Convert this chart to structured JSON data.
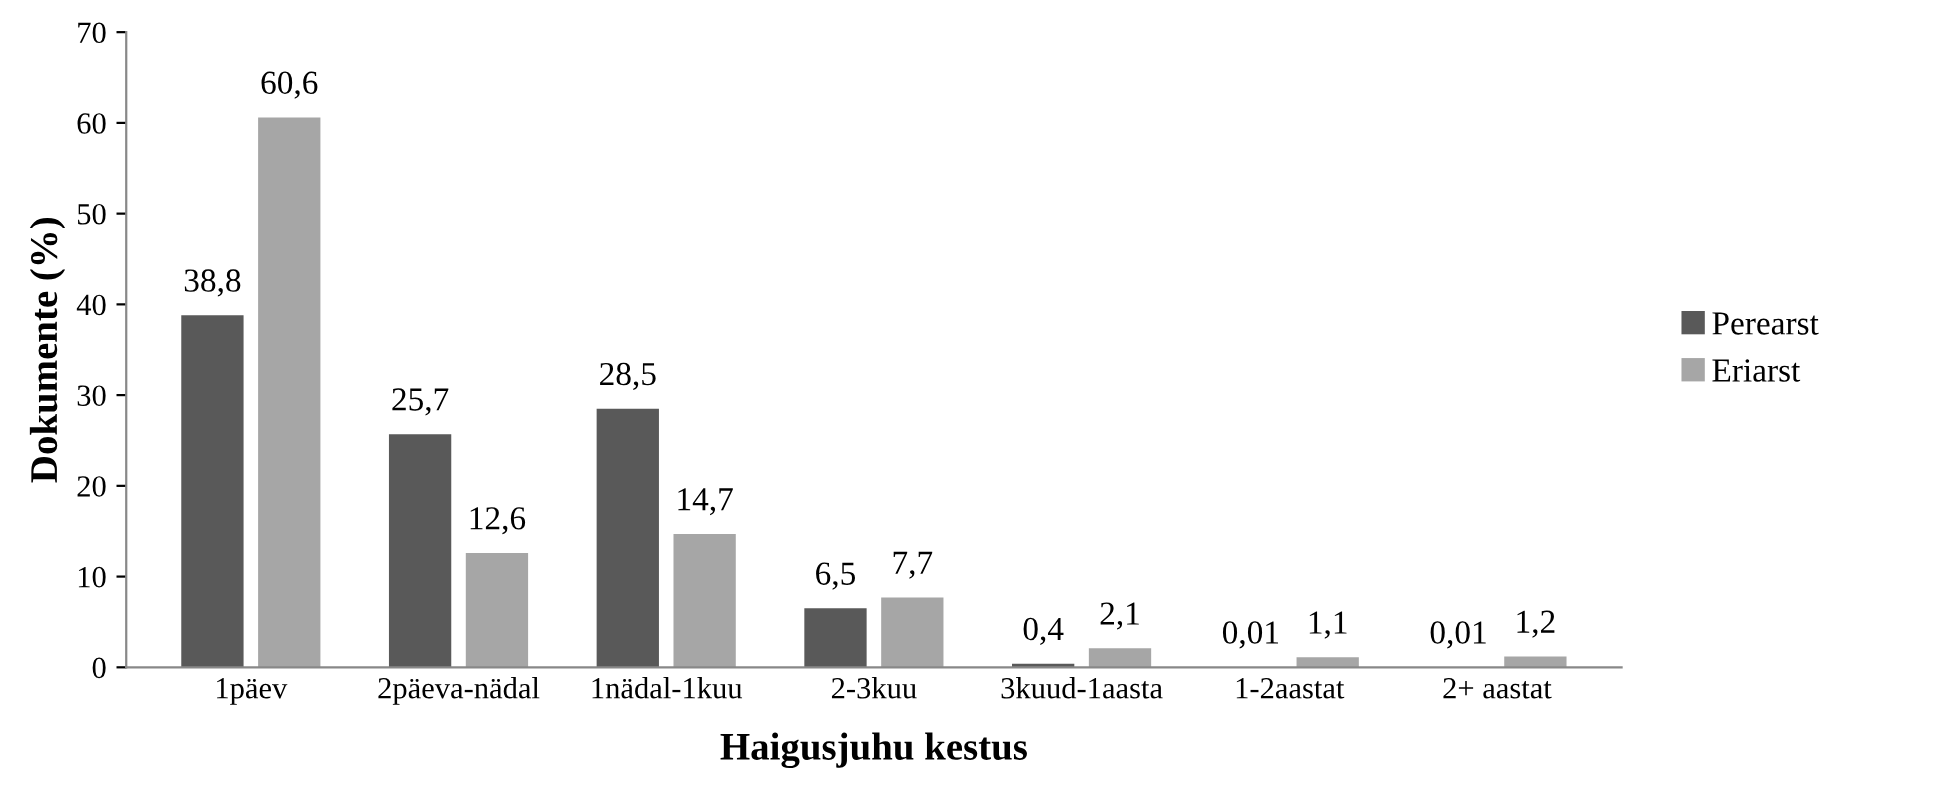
{
  "chart_data": {
    "type": "bar",
    "xlabel": "Haigusjuhu kestus",
    "ylabel": "Dokumente (%)",
    "categories": [
      "1päev",
      "2päeva-nädal",
      "1nädal-1kuu",
      "2-3kuu",
      "3kuud-1aasta",
      "1-2aastat",
      "2+ aastat"
    ],
    "series": [
      {
        "name": "Perearst",
        "color": "#595959",
        "values": [
          38.8,
          25.7,
          28.5,
          6.5,
          0.4,
          0.01,
          0.01
        ],
        "value_labels": [
          "38,8",
          "25,7",
          "28,5",
          "6,5",
          "0,4",
          "0,01",
          "0,01"
        ]
      },
      {
        "name": "Eriarst",
        "color": "#a6a6a6",
        "values": [
          60.6,
          12.6,
          14.7,
          7.7,
          2.1,
          1.1,
          1.2
        ],
        "value_labels": [
          "60,6",
          "12,6",
          "14,7",
          "7,7",
          "2,1",
          "1,1",
          "1,2"
        ]
      }
    ],
    "ylim": [
      0,
      70
    ],
    "yticks": [
      0,
      10,
      20,
      30,
      40,
      50,
      60,
      70
    ],
    "grid": false,
    "legend": "right"
  }
}
